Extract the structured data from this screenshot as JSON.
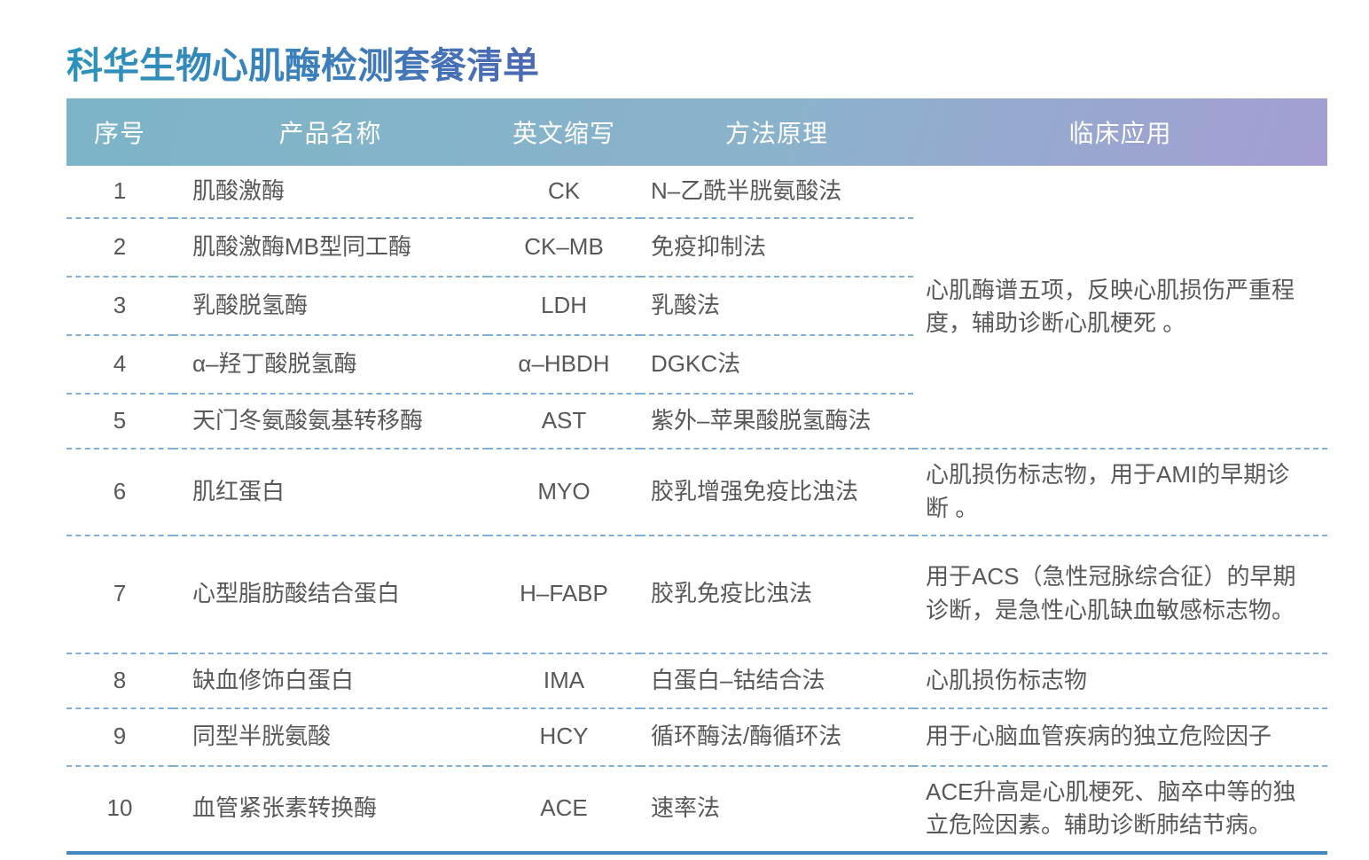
{
  "page": {
    "title": "科华生物心肌酶检测套餐清单"
  },
  "colors": {
    "title_gradient": [
      "#2b93bb",
      "#3c7ebb",
      "#4d68b4"
    ],
    "header_gradient": [
      "#7db4c7",
      "#8ab3cb",
      "#a49ed3"
    ],
    "divider_dashed": "#7fafd8",
    "bottom_rule": "#4587c1",
    "body_text": "#595757",
    "header_text": "#ffffff"
  },
  "table": {
    "columns": [
      "序号",
      "产品名称",
      "英文缩写",
      "方法原理",
      "临床应用"
    ],
    "rows": [
      {
        "no": "1",
        "name": "肌酸激酶",
        "abbr": "CK",
        "method": "N–乙酰半胱氨酸法",
        "clinical": "心肌酶谱五项，反映心肌损伤严重程度，辅助诊断心肌梗死 。",
        "clinical_rowspan": 5
      },
      {
        "no": "2",
        "name": "肌酸激酶MB型同工酶",
        "abbr": "CK–MB",
        "method": "免疫抑制法"
      },
      {
        "no": "3",
        "name": "乳酸脱氢酶",
        "abbr": "LDH",
        "method": "乳酸法"
      },
      {
        "no": "4",
        "name": "α–羟丁酸脱氢酶",
        "abbr": "α–HBDH",
        "method": "DGKC法"
      },
      {
        "no": "5",
        "name": "天门冬氨酸氨基转移酶",
        "abbr": "AST",
        "method": "紫外–苹果酸脱氢酶法"
      },
      {
        "no": "6",
        "name": "肌红蛋白",
        "abbr": "MYO",
        "method": "胶乳增强免疫比浊法",
        "clinical": "心肌损伤标志物，用于AMI的早期诊断 。",
        "clinical_rowspan": 1
      },
      {
        "no": "7",
        "name": "心型脂肪酸结合蛋白",
        "abbr": "H–FABP",
        "method": "胶乳免疫比浊法",
        "clinical": "用于ACS（急性冠脉综合征）的早期诊断，是急性心肌缺血敏感标志物。",
        "clinical_rowspan": 1
      },
      {
        "no": "8",
        "name": "缺血修饰白蛋白",
        "abbr": "IMA",
        "method": "白蛋白–钴结合法",
        "clinical": "心肌损伤标志物",
        "clinical_rowspan": 1
      },
      {
        "no": "9",
        "name": "同型半胱氨酸",
        "abbr": "HCY",
        "method": "循环酶法/酶循环法",
        "clinical": "用于心脑血管疾病的独立危险因子",
        "clinical_rowspan": 1
      },
      {
        "no": "10",
        "name": "血管紧张素转换酶",
        "abbr": "ACE",
        "method": "速率法",
        "clinical": "ACE升高是心肌梗死、脑卒中等的独立危险因素。辅助诊断肺结节病。",
        "clinical_rowspan": 1
      }
    ]
  }
}
